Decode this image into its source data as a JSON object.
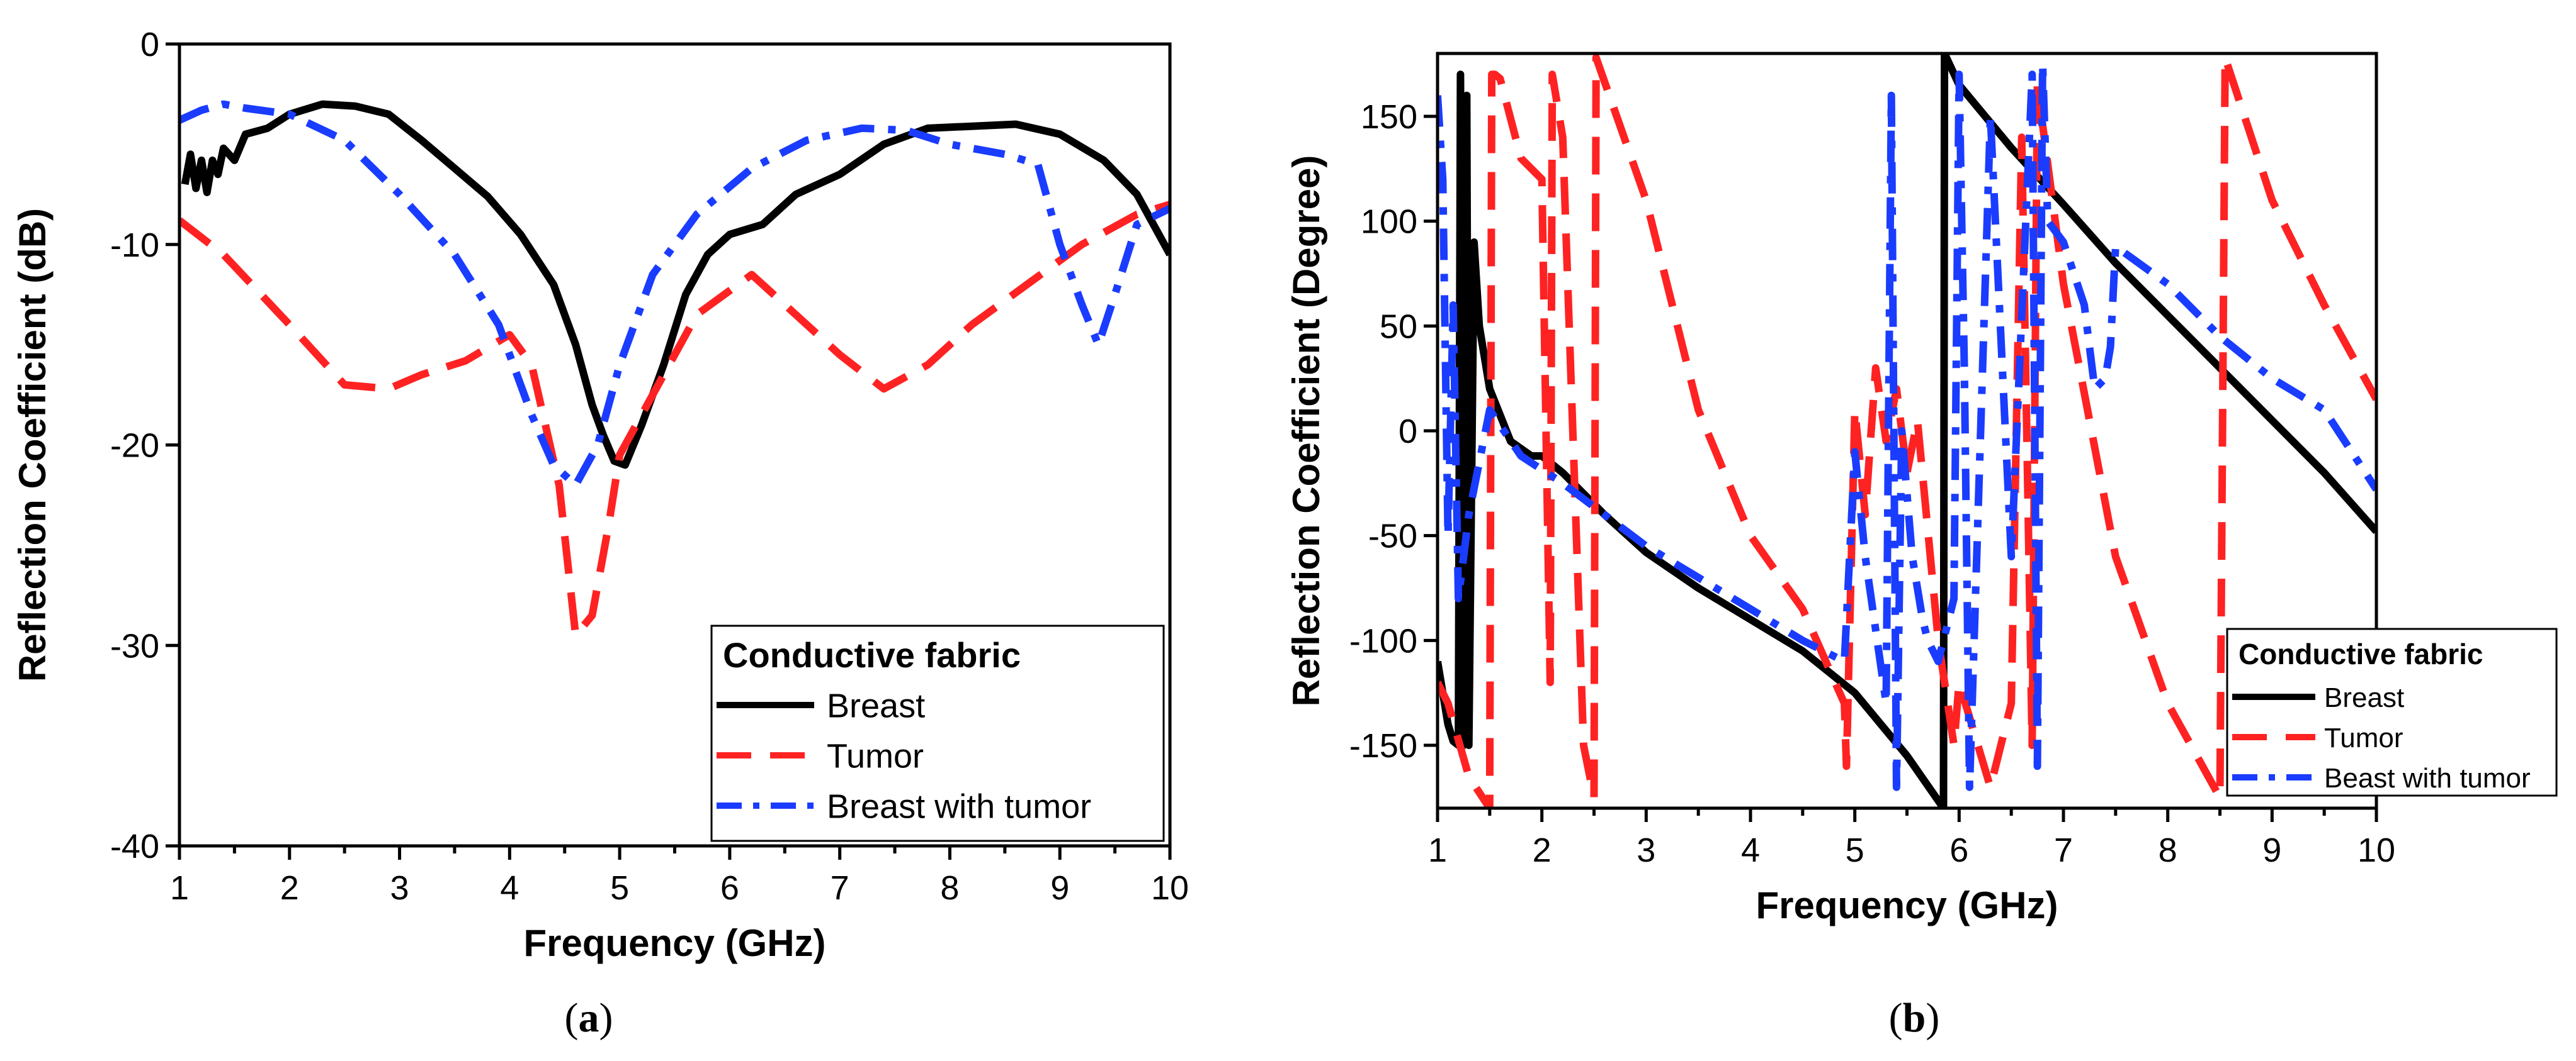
{
  "chart_data": [
    {
      "type": "line",
      "caption_letter": "a",
      "xlabel": "Frequency (GHz)",
      "ylabel": "Reflection Coefficient (dB)",
      "xlim": [
        1,
        10
      ],
      "ylim": [
        -40,
        0
      ],
      "xticks": [
        1,
        2,
        3,
        4,
        5,
        6,
        7,
        8,
        9,
        10
      ],
      "yticks": [
        -40,
        -30,
        -20,
        -10,
        0
      ],
      "legend": {
        "title": "Conductive fabric",
        "placement": "bottom-right"
      },
      "series": [
        {
          "name": "Breast",
          "color": "#000000",
          "style": "solid",
          "x": [
            1.05,
            1.1,
            1.15,
            1.2,
            1.25,
            1.3,
            1.35,
            1.4,
            1.5,
            1.6,
            1.8,
            2.0,
            2.3,
            2.6,
            2.9,
            3.2,
            3.5,
            3.8,
            4.1,
            4.4,
            4.6,
            4.75,
            4.85,
            4.95,
            5.05,
            5.2,
            5.4,
            5.6,
            5.8,
            6.0,
            6.3,
            6.6,
            7.0,
            7.4,
            7.8,
            8.2,
            8.6,
            9.0,
            9.4,
            9.7,
            10.0
          ],
          "y": [
            -7,
            -5.5,
            -7.2,
            -5.8,
            -7.4,
            -5.8,
            -6.5,
            -5.2,
            -5.8,
            -4.5,
            -4.2,
            -3.5,
            -3.0,
            -3.1,
            -3.5,
            -4.8,
            -6.2,
            -7.6,
            -9.5,
            -12,
            -15,
            -18,
            -19.5,
            -20.8,
            -21,
            -19,
            -16,
            -12.5,
            -10.5,
            -9.5,
            -9,
            -7.5,
            -6.5,
            -5,
            -4.2,
            -4.1,
            -4,
            -4.5,
            -5.8,
            -7.5,
            -10.5
          ]
        },
        {
          "name": "Tumor",
          "color": "#ff2222",
          "style": "dashed",
          "x": [
            1.0,
            1.4,
            2.0,
            2.5,
            2.9,
            3.2,
            3.6,
            4.0,
            4.2,
            4.45,
            4.6,
            4.75,
            4.9,
            5.0,
            5.3,
            5.7,
            6.2,
            6.6,
            7.0,
            7.4,
            7.8,
            8.2,
            8.7,
            9.2,
            9.7,
            10.0
          ],
          "y": [
            -8.8,
            -10.5,
            -14,
            -17,
            -17.2,
            -16.5,
            -15.8,
            -14.5,
            -16,
            -22,
            -29.5,
            -28.5,
            -24,
            -20.5,
            -17.5,
            -13.5,
            -11.5,
            -13.5,
            -15.5,
            -17.2,
            -16,
            -14,
            -12,
            -10,
            -8.5,
            -8
          ]
        },
        {
          "name": "Breast with tumor",
          "color": "#1a3cff",
          "style": "dashdot",
          "x": [
            1.0,
            1.2,
            1.4,
            1.6,
            2.0,
            2.5,
            3.0,
            3.5,
            3.9,
            4.2,
            4.4,
            4.6,
            4.8,
            5.0,
            5.3,
            5.7,
            6.2,
            6.7,
            7.2,
            7.6,
            8.0,
            8.5,
            8.8,
            9.0,
            9.2,
            9.35,
            9.5,
            9.7,
            10.0
          ],
          "y": [
            -3.8,
            -3.3,
            -3,
            -3.2,
            -3.5,
            -4.8,
            -7.5,
            -10.5,
            -14,
            -18.5,
            -21,
            -22,
            -20,
            -16,
            -11.5,
            -8.5,
            -6.2,
            -4.8,
            -4.2,
            -4.3,
            -5,
            -5.5,
            -6,
            -10,
            -13,
            -15,
            -12.5,
            -9,
            -8.2
          ]
        }
      ]
    },
    {
      "type": "line",
      "caption_letter": "b",
      "xlabel": "Frequency (GHz)",
      "ylabel": "Reflection Coefficient (Degree)",
      "xlim": [
        1,
        10
      ],
      "ylim": [
        -180,
        180
      ],
      "xticks": [
        1,
        2,
        3,
        4,
        5,
        6,
        7,
        8,
        9,
        10
      ],
      "yticks": [
        -150,
        -100,
        -50,
        0,
        50,
        100,
        150
      ],
      "legend": {
        "title": "Conductive fabric",
        "placement": "bottom-right"
      },
      "series": [
        {
          "name": "Breast",
          "color": "#000000",
          "style": "solid",
          "x": [
            1.0,
            1.1,
            1.15,
            1.2,
            1.22,
            1.25,
            1.28,
            1.3,
            1.35,
            1.4,
            1.5,
            1.7,
            1.9,
            2.0,
            2.2,
            2.6,
            3.0,
            3.5,
            4.0,
            4.5,
            5.0,
            5.5,
            5.85,
            5.86,
            6.0,
            6.5,
            7.0,
            7.5,
            8.0,
            8.5,
            9.0,
            9.5,
            10.0
          ],
          "y": [
            -110,
            -140,
            -148,
            -150,
            170,
            -150,
            160,
            -150,
            90,
            50,
            20,
            -5,
            -12,
            -12,
            -20,
            -40,
            -58,
            -75,
            -90,
            -105,
            -125,
            -155,
            -180,
            180,
            165,
            135,
            108,
            80,
            55,
            30,
            5,
            -20,
            -48
          ]
        },
        {
          "name": "Tumor",
          "color": "#ff2222",
          "style": "dashed",
          "x": [
            1.0,
            1.1,
            1.3,
            1.5,
            1.52,
            1.55,
            1.6,
            1.8,
            2.0,
            2.08,
            2.1,
            2.2,
            2.4,
            2.5,
            2.52,
            3.0,
            3.5,
            4.0,
            4.5,
            4.9,
            4.92,
            5.0,
            5.1,
            5.2,
            5.3,
            5.4,
            5.5,
            5.6,
            5.8,
            5.95,
            6.0,
            6.3,
            6.5,
            6.6,
            6.7,
            6.75,
            7.0,
            7.5,
            8.0,
            8.5,
            8.55,
            9.0,
            9.5,
            10.0
          ],
          "y": [
            -120,
            -130,
            -165,
            -180,
            170,
            170,
            168,
            130,
            120,
            -120,
            170,
            140,
            -150,
            -175,
            178,
            110,
            10,
            -50,
            -85,
            -130,
            -160,
            10,
            -40,
            30,
            -5,
            20,
            -20,
            5,
            -100,
            -150,
            -120,
            -170,
            -130,
            140,
            -150,
            165,
            70,
            -60,
            -130,
            -175,
            178,
            110,
            60,
            15
          ]
        },
        {
          "name": "Beast with tumor",
          "color": "#1a3cff",
          "style": "dashdot",
          "x": [
            1.0,
            1.05,
            1.1,
            1.15,
            1.2,
            1.3,
            1.5,
            1.8,
            2.2,
            2.6,
            3.0,
            3.5,
            4.0,
            4.5,
            4.9,
            5.0,
            5.1,
            5.3,
            5.35,
            5.4,
            5.45,
            5.55,
            5.65,
            5.7,
            5.8,
            5.95,
            6.0,
            6.05,
            6.1,
            6.3,
            6.5,
            6.7,
            6.75,
            6.8,
            6.85,
            7.0,
            7.2,
            7.3,
            7.4,
            7.45,
            7.5,
            8.0,
            8.5,
            9.0,
            9.5,
            10.0
          ],
          "y": [
            160,
            120,
            -50,
            60,
            -80,
            -40,
            10,
            -12,
            -25,
            -40,
            -55,
            -70,
            -85,
            -100,
            -110,
            -10,
            -60,
            -130,
            160,
            -170,
            0,
            -60,
            -90,
            -100,
            -110,
            -80,
            170,
            30,
            -170,
            150,
            -60,
            170,
            -160,
            175,
            100,
            90,
            60,
            20,
            25,
            40,
            88,
            70,
            45,
            25,
            10,
            -28
          ]
        }
      ]
    }
  ]
}
